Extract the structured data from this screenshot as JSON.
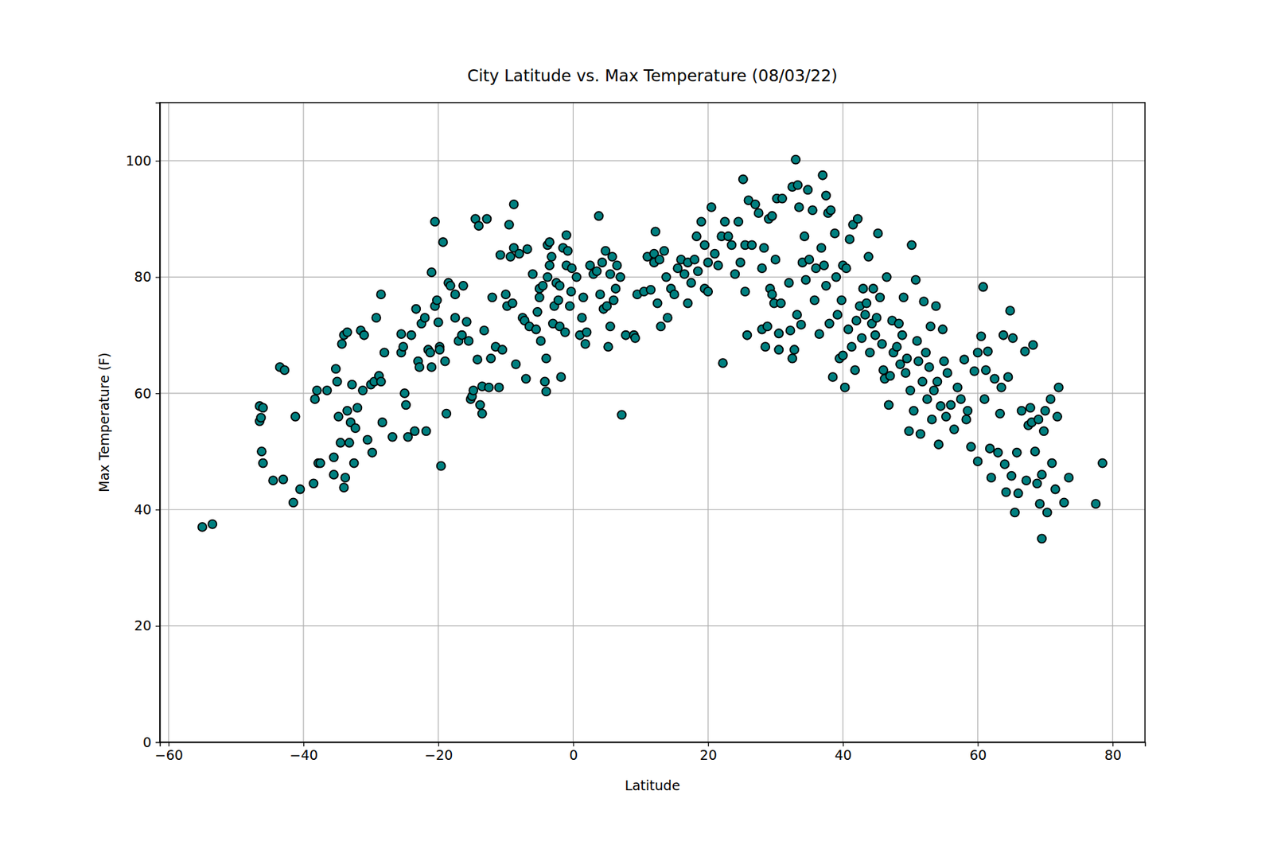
{
  "chart_data": {
    "type": "scatter",
    "title": "City Latitude vs. Max Temperature (08/03/22)",
    "x_label": "Latitude",
    "y_label": "Max Temperature (F)",
    "color": "#008080",
    "marker": "circle",
    "grid": true,
    "xlim": [
      -61.3,
      84.8
    ],
    "xticks": [
      -60,
      -40,
      -20,
      0,
      20,
      40,
      60,
      80
    ],
    "ylim": [
      0,
      110
    ],
    "yticks": [
      0,
      20,
      40,
      60,
      80,
      100
    ],
    "x": [
      -55,
      -53.5,
      -46.5,
      -46.5,
      -46.3,
      -46,
      -46.2,
      -46,
      -44.5,
      -43.5,
      -42.8,
      -43,
      -41.5,
      -41.2,
      -40.5,
      -38.5,
      -38.3,
      -38,
      -37.8,
      -37.5,
      -36.5,
      -35.5,
      -35.5,
      -35.2,
      -35,
      -34.8,
      -34.5,
      -34.3,
      -34,
      -34,
      -33.8,
      -33.5,
      -33.5,
      -33.2,
      -33,
      -32.8,
      -32.5,
      -32.3,
      -32,
      -31.5,
      -31.2,
      -31,
      -30.5,
      -30,
      -29.8,
      -29.5,
      -29.2,
      -28.8,
      -28.5,
      -28.5,
      -28.3,
      -28,
      -26.8,
      -25.5,
      -25.5,
      -25.2,
      -25,
      -24.8,
      -24.5,
      -24,
      -23.5,
      -23.3,
      -23,
      -22.8,
      -22.5,
      -22,
      -21.8,
      -21.5,
      -21.2,
      -21,
      -21,
      -20.5,
      -20.5,
      -20.2,
      -20,
      -19.8,
      -19.8,
      -19.6,
      -19.3,
      -19,
      -18.8,
      -18.5,
      -18.2,
      -17.5,
      -17.5,
      -17,
      -16.5,
      -16.3,
      -15.8,
      -15.5,
      -15.2,
      -15,
      -14.8,
      -14.5,
      -14.2,
      -14,
      -13.8,
      -13.5,
      -13.5,
      -13.2,
      -12.8,
      -12.5,
      -12.2,
      -12,
      -11.5,
      -11,
      -10.8,
      -10.5,
      -10,
      -9.8,
      -9.5,
      -9.3,
      -9,
      -8.8,
      -8.8,
      -8.5,
      -8,
      -7.5,
      -7.2,
      -7,
      -6.8,
      -6.5,
      -6,
      -5.5,
      -5.3,
      -5,
      -5,
      -4.8,
      -4.5,
      -4.2,
      -4,
      -4,
      -3.8,
      -3.8,
      -3.5,
      -3.5,
      -3.2,
      -3,
      -2.8,
      -2.5,
      -2.2,
      -2,
      -2,
      -1.8,
      -1.5,
      -1.2,
      -1,
      -1,
      -0.8,
      -0.5,
      -0.3,
      -0.2,
      0.5,
      1,
      1.3,
      1.5,
      1.8,
      2,
      2.5,
      3,
      3.5,
      3.8,
      4,
      4.3,
      4.5,
      4.8,
      5,
      5.2,
      5.5,
      5.5,
      5.8,
      6,
      6.3,
      6.5,
      7,
      7.2,
      7.8,
      9,
      9.2,
      9.5,
      10.5,
      11,
      11.5,
      12,
      12,
      12.2,
      12.5,
      12.8,
      13,
      13.5,
      13.8,
      14,
      14.5,
      15,
      15.5,
      16,
      16.5,
      17,
      17,
      17.5,
      18,
      18.3,
      18.5,
      19,
      19.5,
      19.5,
      20,
      20,
      20.5,
      21,
      21.5,
      22,
      22.2,
      22.5,
      23,
      23.5,
      24,
      24.5,
      24.8,
      25.2,
      25.5,
      25.5,
      25.8,
      26,
      26.5,
      27,
      27.5,
      28,
      28,
      28.3,
      28.5,
      28.8,
      29,
      29.2,
      29.5,
      29.5,
      29.8,
      30,
      30.2,
      30.5,
      30.5,
      30.8,
      31,
      32,
      32.2,
      32.5,
      32.5,
      32.8,
      33,
      33.2,
      33.3,
      33.5,
      33.8,
      34,
      34.3,
      34.5,
      34.8,
      35,
      35.5,
      35.8,
      36,
      36.5,
      36.8,
      37,
      37.2,
      37.5,
      37.5,
      37.8,
      38,
      38.2,
      38.5,
      38.8,
      39,
      39.2,
      39.5,
      39.8,
      40,
      40,
      40.3,
      40.5,
      40.8,
      41,
      41.3,
      41.5,
      41.8,
      42,
      42.2,
      42.5,
      42.8,
      43,
      43.3,
      43.5,
      43.8,
      44,
      44.3,
      44.5,
      44.8,
      45,
      45.2,
      45.5,
      45.8,
      46,
      46.2,
      46.5,
      46.8,
      47,
      47.3,
      47.5,
      48,
      48.3,
      48.5,
      48.8,
      49,
      49.3,
      49.5,
      49.8,
      50,
      50.2,
      50.5,
      50.8,
      51,
      51.2,
      51.5,
      51.8,
      52,
      52.3,
      52.5,
      52.8,
      53,
      53.2,
      53.5,
      53.8,
      54,
      54.2,
      54.5,
      54.8,
      55,
      55.3,
      55.5,
      56,
      56.5,
      57,
      57.5,
      58,
      58.3,
      58.5,
      59,
      59.5,
      60,
      60,
      60.5,
      60.8,
      61,
      61.2,
      61.5,
      61.8,
      62,
      62.5,
      63,
      63.3,
      63.5,
      63.8,
      64,
      64.2,
      64.5,
      64.8,
      65,
      65.2,
      65.5,
      65.8,
      66,
      66.5,
      67,
      67.2,
      67.5,
      67.8,
      68,
      68.2,
      68.5,
      68.8,
      69,
      69.2,
      69.5,
      69.5,
      69.8,
      70,
      70.3,
      70.8,
      71,
      71.5,
      71.8,
      72,
      72.8,
      73.5,
      77.5,
      78.5
    ],
    "values": [
      37,
      37.5,
      57.8,
      55.2,
      55.8,
      57.5,
      50,
      48,
      45,
      64.5,
      64,
      45.2,
      41.2,
      56,
      43.5,
      44.5,
      59,
      60.5,
      48,
      48,
      60.5,
      49,
      46,
      64.2,
      62,
      56,
      51.5,
      68.5,
      70,
      43.8,
      45.5,
      57,
      70.5,
      51.5,
      55,
      61.5,
      48,
      54,
      57.5,
      70.8,
      60.5,
      70,
      52,
      61.5,
      49.8,
      62,
      73,
      63,
      62,
      77,
      55,
      67,
      52.5,
      70.2,
      67,
      68,
      60,
      58,
      52.5,
      70,
      53.5,
      74.5,
      65.5,
      64.5,
      72,
      73,
      53.5,
      67.5,
      67,
      64.5,
      80.8,
      89.5,
      75,
      76,
      72.2,
      68,
      67.5,
      47.5,
      86,
      65.5,
      56.5,
      79,
      78.5,
      77,
      73,
      69,
      70,
      78.5,
      72.3,
      69,
      59,
      59.5,
      60.5,
      90,
      65.8,
      88.8,
      58,
      56.5,
      61.2,
      70.8,
      90,
      61,
      66,
      76.5,
      68,
      61,
      83.8,
      67.5,
      77,
      75,
      89,
      83.5,
      75.5,
      92.5,
      85,
      65,
      84,
      73,
      72.5,
      62.5,
      84.8,
      71.5,
      80.5,
      71,
      74,
      76.5,
      78,
      69,
      78.5,
      62,
      60.3,
      66,
      80,
      85.5,
      86,
      82,
      83.5,
      72,
      75,
      79,
      76,
      71.5,
      78.5,
      62.8,
      85,
      70.5,
      87.2,
      82,
      84.5,
      75,
      77.5,
      81.5,
      80,
      70,
      73,
      76.5,
      68.5,
      70.5,
      82,
      80.5,
      81,
      90.5,
      77,
      82.5,
      74.5,
      84.5,
      75,
      68,
      80.5,
      71.5,
      83.5,
      76,
      78,
      82,
      80,
      56.3,
      70,
      70,
      69.5,
      77,
      77.5,
      83.5,
      77.8,
      84,
      82.5,
      87.8,
      75.5,
      83,
      71.5,
      84.5,
      80,
      73,
      78,
      77,
      81.5,
      83,
      80.5,
      75.5,
      82.5,
      79,
      83,
      87,
      81,
      89.5,
      85.5,
      78,
      77.5,
      82.5,
      92,
      84,
      82,
      87,
      65.2,
      89.5,
      87,
      85.5,
      80.5,
      89.5,
      82.5,
      96.8,
      77.5,
      85.5,
      70,
      93.2,
      85.5,
      92.5,
      91,
      71,
      81.5,
      85,
      68,
      71.5,
      90,
      78,
      77,
      90.5,
      75.5,
      83,
      93.5,
      67.5,
      70.3,
      75.5,
      93.5,
      79,
      70.8,
      66,
      95.5,
      67.5,
      100.2,
      73.5,
      95.8,
      92,
      71.8,
      82.5,
      87,
      79.5,
      95,
      83,
      91.5,
      76,
      81.5,
      70.2,
      85,
      97.5,
      82,
      94,
      78.5,
      91,
      72,
      91.5,
      62.8,
      87.5,
      80,
      73.5,
      66,
      76,
      66.5,
      82,
      61,
      81.5,
      71,
      86.5,
      68,
      89,
      64,
      72.5,
      90,
      75,
      69.5,
      78,
      73.5,
      75.5,
      83.5,
      67,
      72,
      78,
      70,
      73,
      87.5,
      76.5,
      68.5,
      64,
      62.5,
      80,
      58,
      63,
      72.5,
      67,
      68,
      72,
      65,
      70,
      76.5,
      63.5,
      66,
      53.5,
      60.5,
      85.5,
      57,
      79.5,
      69,
      65.5,
      53,
      62,
      75.8,
      67,
      59,
      64.5,
      71.5,
      55.5,
      60.5,
      75,
      62,
      51.2,
      57.8,
      71,
      65.5,
      56,
      63.5,
      58,
      53.8,
      61,
      59,
      65.8,
      55.5,
      57,
      50.8,
      63.8,
      48.3,
      67,
      69.8,
      78.3,
      59,
      64,
      67.2,
      50.5,
      45.5,
      62.5,
      49.8,
      56.5,
      61,
      70,
      47.8,
      43,
      62.8,
      74.2,
      45.8,
      69.5,
      39.5,
      49.8,
      42.8,
      57,
      67.2,
      45,
      54.5,
      57.5,
      55,
      68.3,
      50,
      44.5,
      55.5,
      41,
      46,
      35,
      53.5,
      57,
      39.5,
      59,
      48,
      43.5,
      56,
      61,
      41.2,
      45.5,
      41,
      48
    ]
  }
}
